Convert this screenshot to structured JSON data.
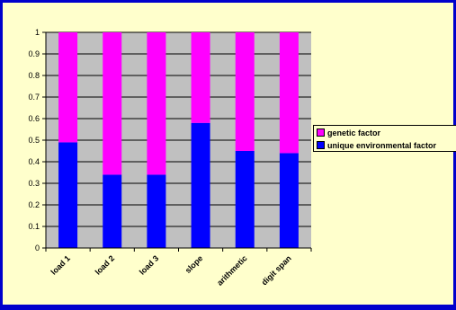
{
  "chart_data": {
    "type": "bar",
    "stacked": true,
    "title": "",
    "xlabel": "",
    "ylabel": "",
    "categories": [
      "load 1",
      "load 2",
      "load 3",
      "slope",
      "arithmetic",
      "digit span"
    ],
    "series": [
      {
        "name": "unique environmental factor",
        "color": "#0000ff",
        "values": [
          0.49,
          0.34,
          0.34,
          0.58,
          0.45,
          0.44
        ]
      },
      {
        "name": "genetic factor",
        "color": "#ff00ff",
        "values": [
          0.51,
          0.66,
          0.66,
          0.42,
          0.55,
          0.56
        ]
      }
    ],
    "ylim": [
      0,
      1
    ],
    "yticks": [
      "0",
      "0.1",
      "0.2",
      "0.3",
      "0.4",
      "0.5",
      "0.6",
      "0.7",
      "0.8",
      "0.9",
      "1"
    ],
    "grid": true,
    "plot_background": "#c0c0c0",
    "legend_position": "right",
    "legend": [
      {
        "label": "genetic factor",
        "color": "#ff00ff"
      },
      {
        "label": "unique environmental factor",
        "color": "#0000ff"
      }
    ]
  }
}
